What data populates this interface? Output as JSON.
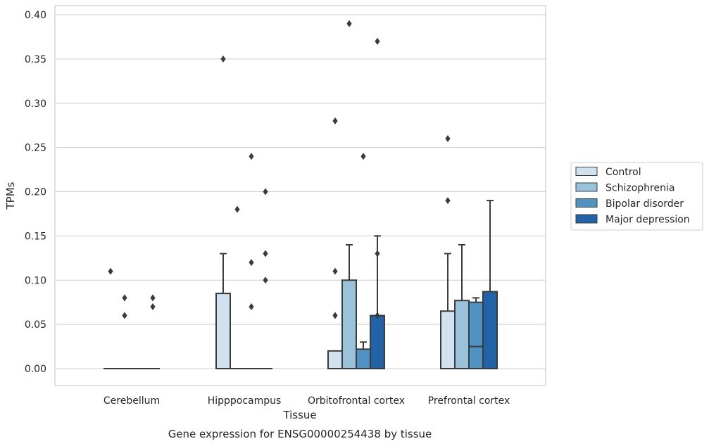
{
  "chart_data": {
    "type": "boxplot",
    "caption": "Gene expression for ENSG00000254438 by tissue",
    "xlabel": "Tissue",
    "ylabel": "TPMs",
    "ylim": [
      -0.02,
      0.41
    ],
    "yticks": [
      0.0,
      0.05,
      0.1,
      0.15,
      0.2,
      0.25,
      0.3,
      0.35,
      0.4
    ],
    "ytick_labels": [
      "0.00",
      "0.05",
      "0.10",
      "0.15",
      "0.20",
      "0.25",
      "0.30",
      "0.35",
      "0.40"
    ],
    "grid": "horizontal",
    "legend_position": "right-outside",
    "categories": [
      "Cerebellum",
      "Hipppocampus",
      "Orbitofrontal cortex",
      "Prefrontal cortex"
    ],
    "series": [
      {
        "name": "Control",
        "color": "#d1e1f0",
        "boxes": [
          {
            "q1": 0,
            "median": 0,
            "q3": 0,
            "whisker_low": 0,
            "whisker_high": 0,
            "outliers": [
              0.11
            ]
          },
          {
            "q1": 0,
            "median": 0,
            "q3": 0.085,
            "whisker_low": 0,
            "whisker_high": 0.13,
            "outliers": [
              0.35
            ]
          },
          {
            "q1": 0,
            "median": 0,
            "q3": 0.02,
            "whisker_low": 0,
            "whisker_high": 0.02,
            "outliers": [
              0.06,
              0.11,
              0.28
            ]
          },
          {
            "q1": 0,
            "median": 0,
            "q3": 0.065,
            "whisker_low": 0,
            "whisker_high": 0.13,
            "outliers": [
              0.19,
              0.26
            ]
          }
        ]
      },
      {
        "name": "Schizophrenia",
        "color": "#9ac3db",
        "boxes": [
          {
            "q1": 0,
            "median": 0,
            "q3": 0,
            "whisker_low": 0,
            "whisker_high": 0,
            "outliers": [
              0.06,
              0.08
            ]
          },
          {
            "q1": 0,
            "median": 0,
            "q3": 0,
            "whisker_low": 0,
            "whisker_high": 0,
            "outliers": [
              0.18
            ]
          },
          {
            "q1": 0,
            "median": 0,
            "q3": 0.1,
            "whisker_low": 0,
            "whisker_high": 0.14,
            "outliers": [
              0.39
            ]
          },
          {
            "q1": 0,
            "median": 0,
            "q3": 0.077,
            "whisker_low": 0,
            "whisker_high": 0.14,
            "outliers": []
          }
        ]
      },
      {
        "name": "Bipolar disorder",
        "color": "#5093c3",
        "boxes": [
          {
            "q1": 0,
            "median": 0,
            "q3": 0,
            "whisker_low": 0,
            "whisker_high": 0,
            "outliers": []
          },
          {
            "q1": 0,
            "median": 0,
            "q3": 0,
            "whisker_low": 0,
            "whisker_high": 0,
            "outliers": [
              0.07,
              0.12,
              0.24
            ]
          },
          {
            "q1": 0,
            "median": 0,
            "q3": 0.022,
            "whisker_low": 0,
            "whisker_high": 0.03,
            "outliers": [
              0.24
            ]
          },
          {
            "q1": 0,
            "median": 0.025,
            "q3": 0.075,
            "whisker_low": 0,
            "whisker_high": 0.08,
            "outliers": []
          }
        ]
      },
      {
        "name": "Major depression",
        "color": "#2163a6",
        "boxes": [
          {
            "q1": 0,
            "median": 0,
            "q3": 0,
            "whisker_low": 0,
            "whisker_high": 0,
            "outliers": [
              0.07,
              0.08
            ]
          },
          {
            "q1": 0,
            "median": 0,
            "q3": 0,
            "whisker_low": 0,
            "whisker_high": 0,
            "outliers": [
              0.1,
              0.13,
              0.2
            ]
          },
          {
            "q1": 0,
            "median": 0,
            "q3": 0.06,
            "whisker_low": 0,
            "whisker_high": 0.15,
            "outliers": [
              0.06,
              0.13,
              0.37
            ]
          },
          {
            "q1": 0,
            "median": 0,
            "q3": 0.087,
            "whisker_low": 0,
            "whisker_high": 0.19,
            "outliers": []
          }
        ]
      }
    ]
  }
}
